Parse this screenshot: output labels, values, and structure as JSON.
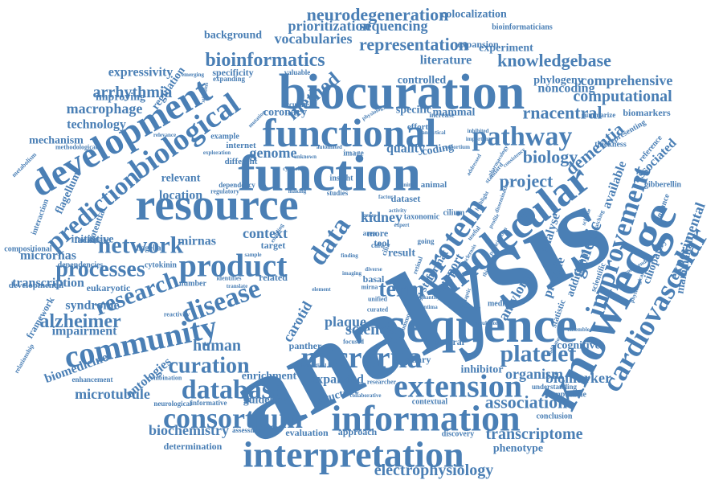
{
  "colors": {
    "word": "#4a7fb5",
    "background": "#ffffff"
  },
  "words": [
    "analysis",
    "sequence",
    "knowledge",
    "biocuration",
    "function",
    "functional",
    "resource",
    "molecular",
    "development",
    "microrna",
    "information",
    "interpretation",
    "extension",
    "protein",
    "cardiovascular",
    "improvement",
    "product",
    "community",
    "biological",
    "data",
    "pathway",
    "consortium",
    "database",
    "network",
    "prediction",
    "research",
    "disease",
    "processes",
    "platelet",
    "curation",
    "alzheimer",
    "bioinformatics",
    "neurodegeneration",
    "representation",
    "method",
    "knowledgebase",
    "rnacentral",
    "genetic",
    "project",
    "biology",
    "dementia",
    "association",
    "electrophysiology",
    "computational",
    "comprehensive",
    "term",
    "science",
    "human",
    "context",
    "genome",
    "transcriptome",
    "prioritization",
    "sequencing",
    "vocabularies",
    "experimental",
    "macrophage",
    "arrhythmia",
    "expressivity",
    "technology",
    "microtubule",
    "organism",
    "biomarker",
    "amyloid",
    "biochemistry",
    "carotid",
    "kidney",
    "syndrome",
    "impairment",
    "mechanism",
    "transcription",
    "micrornas",
    "literature",
    "noncoding",
    "phylogeny",
    "background",
    "improving",
    "location",
    "relevant",
    "mirnas",
    "initiative",
    "biomedicine",
    "ontologies",
    "enrichment",
    "expanded",
    "guideline",
    "determination",
    "approach",
    "evaluation",
    "cognitive",
    "inhibitor",
    "phenotype",
    "structure",
    "experiment",
    "specificity",
    "coronary",
    "specific",
    "mammal",
    "biomarkers",
    "analyse",
    "available",
    "provide",
    "additional",
    "associated",
    "ciliopathy",
    "mammalian",
    "flagellum",
    "colocalization",
    "bioinformaticians",
    "expansion",
    "regulation",
    "controlled",
    "quality",
    "coding",
    "dataset",
    "plaque",
    "result",
    "panther",
    "several",
    "framework",
    "developmental",
    "compositional",
    "eukaryotic",
    "facilitate",
    "dependencies",
    "interaction",
    "potential",
    "number",
    "cytokinin",
    "flagella",
    "internet",
    "example",
    "different",
    "target",
    "tool",
    "more",
    "related",
    "basal",
    "ciliary",
    "system",
    "support",
    "format",
    "conclusion",
    "computable",
    "understanding",
    "contextual",
    "discovery",
    "assessment",
    "informative",
    "neurological",
    "enhancement",
    "combination",
    "relationship",
    "reactivity",
    "statistic",
    "scientific",
    "reference",
    "gibberellin",
    "enhance",
    "thickness",
    "representing",
    "summarize",
    "increase",
    "accurate",
    "valuable",
    "expanding",
    "dependency",
    "insight",
    "studies",
    "cilium",
    "animal",
    "taxonomic",
    "media",
    "effort",
    "going",
    "image",
    "focused",
    "biomedical",
    "researcher",
    "collaborative",
    "useful",
    "standard",
    "common",
    "methodological",
    "metabolism",
    "unified",
    "mirna",
    "curated",
    "physiology",
    "automated",
    "consortium",
    "enabling",
    "cafa",
    "area",
    "cilia",
    "regulatory",
    "making",
    "identifies",
    "translate",
    "retinal",
    "factor",
    "genes",
    "activity",
    "expert",
    "intima",
    "synaptic",
    "pharmacology",
    "circulation",
    "coverage",
    "quantity",
    "recommendation",
    "physiological",
    "consistency",
    "addressed",
    "highlight",
    "important",
    "inhibited",
    "cytosolic",
    "diverse",
    "sample",
    "element",
    "unknown",
    "imaging",
    "mutation",
    "stimulus",
    "emerging",
    "relevance",
    "exploration",
    "finding",
    "thickening",
    "sclerosis",
    "mining",
    "profile",
    "dissemination",
    "participation",
    "scheme",
    "matching",
    "indicator",
    "ensemble",
    "analytical",
    "annotated"
  ]
}
